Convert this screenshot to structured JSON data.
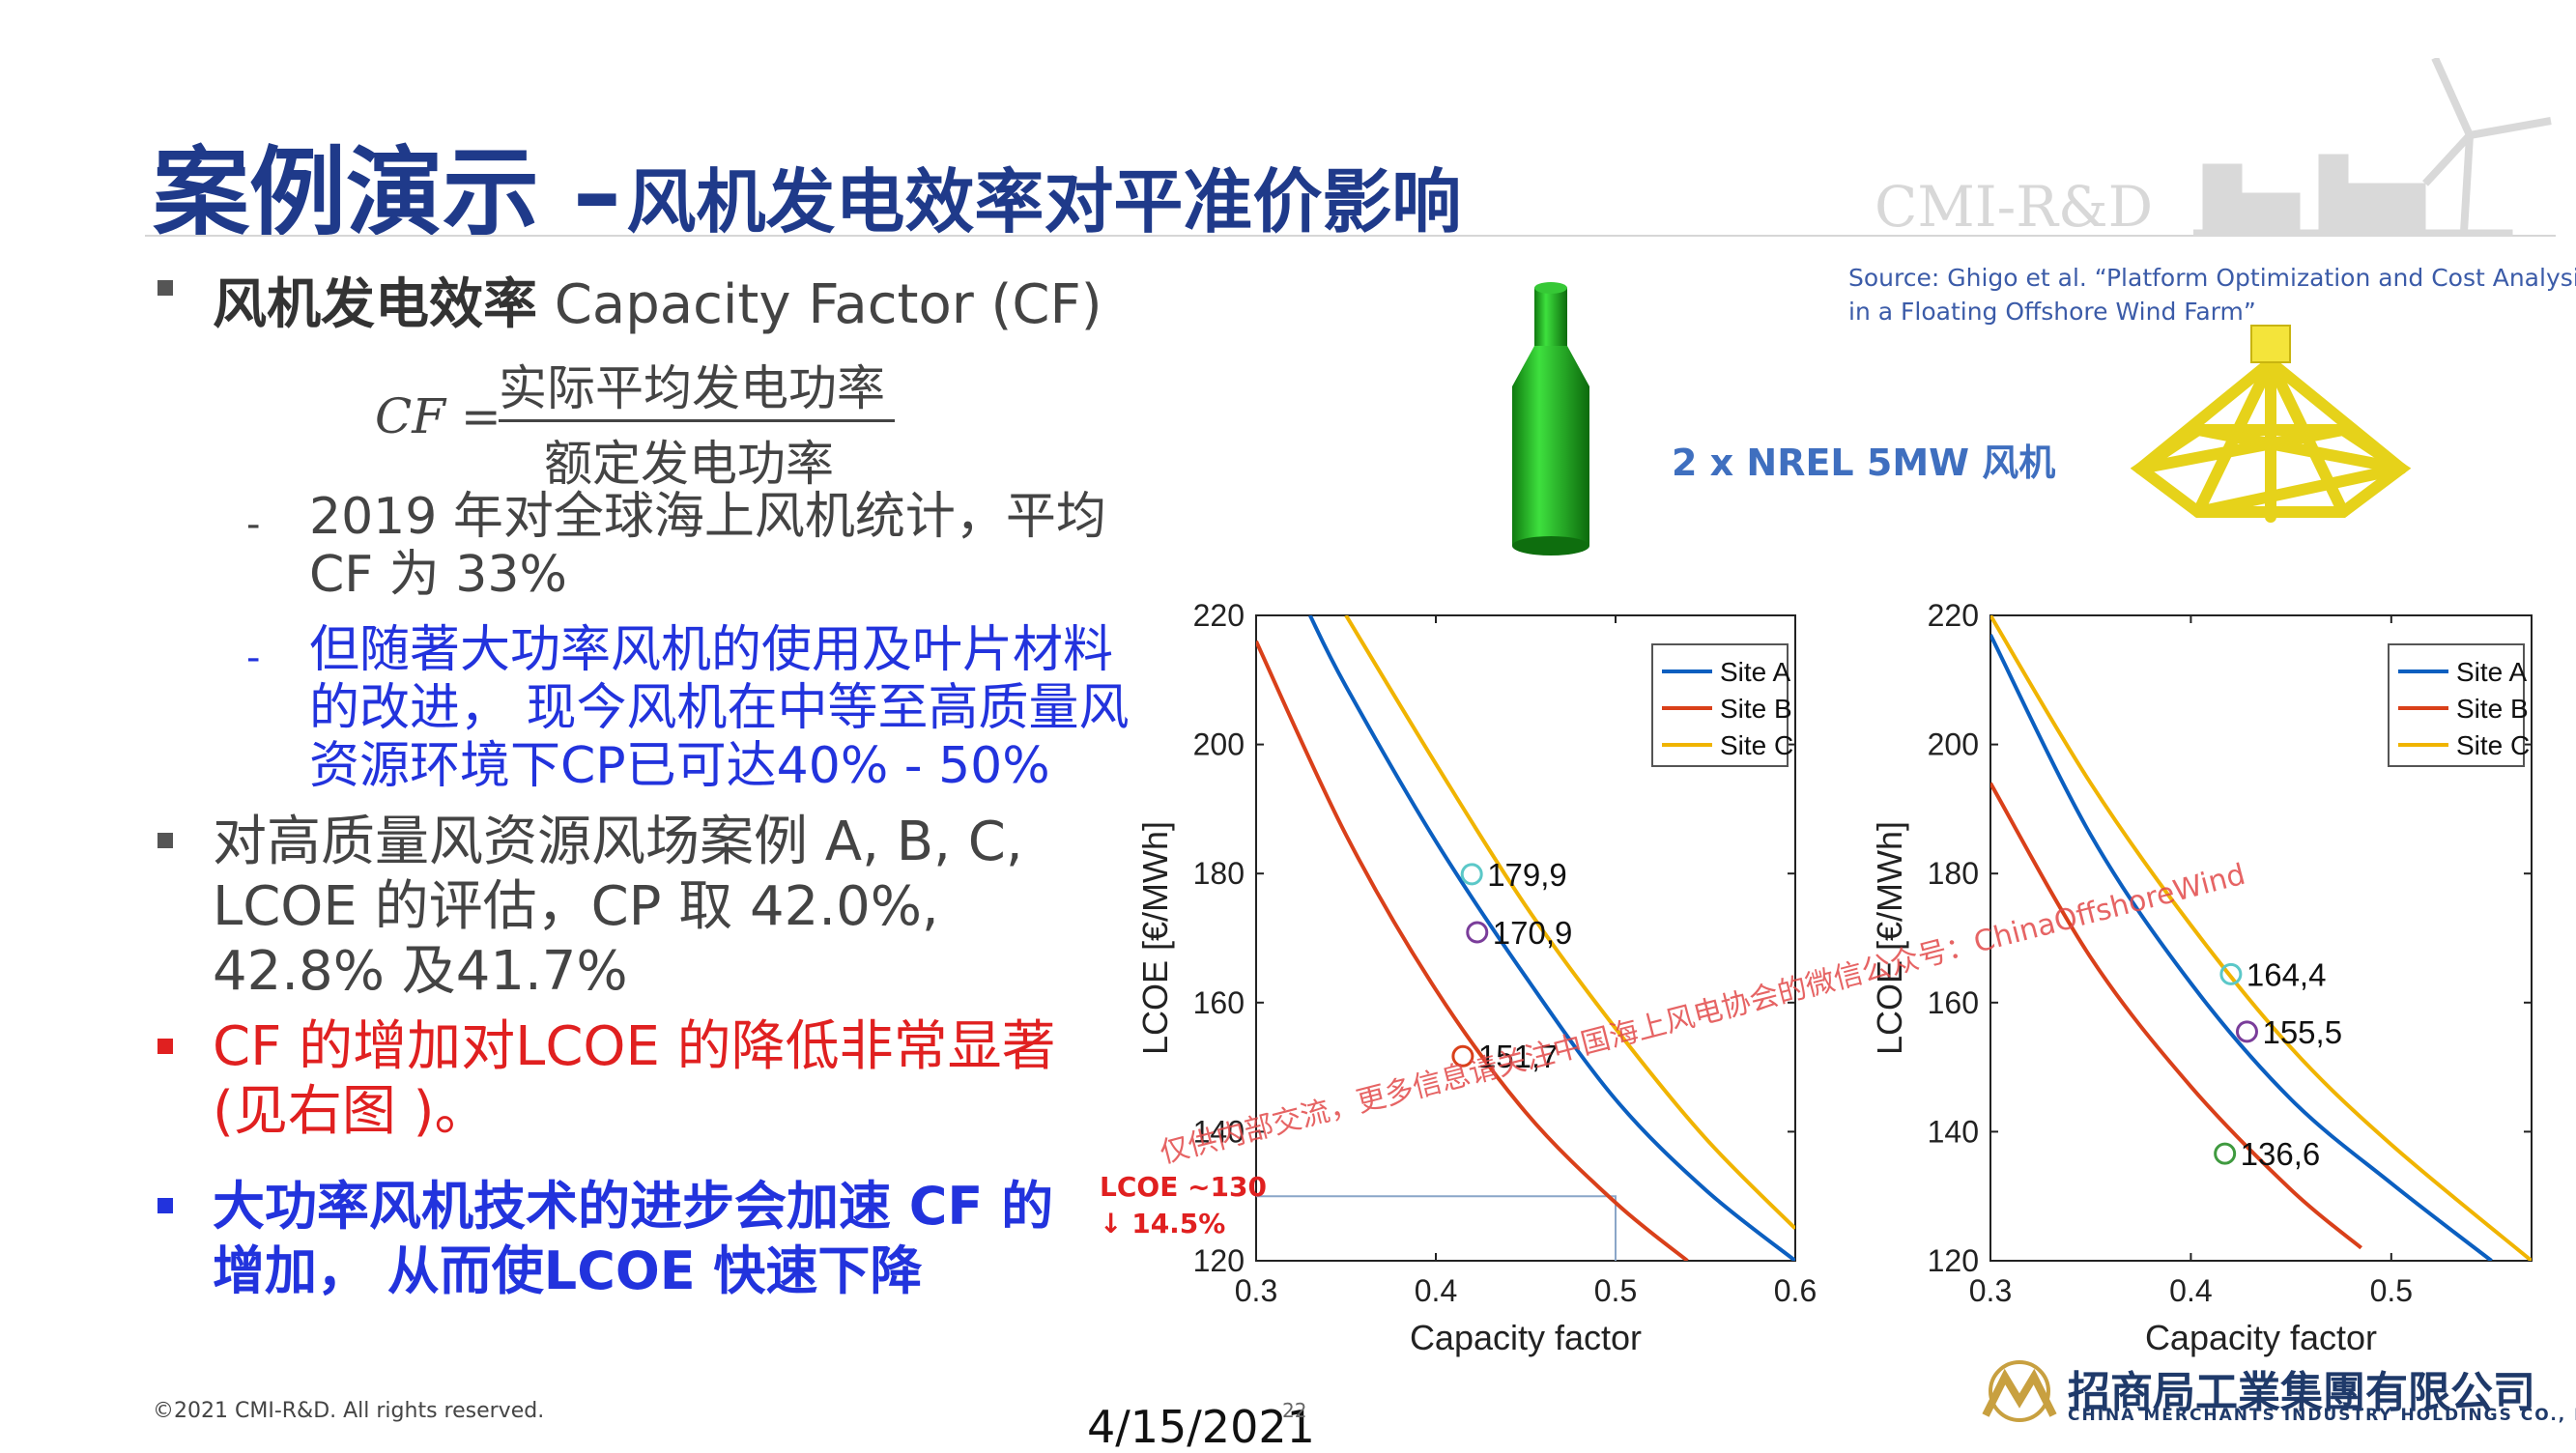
{
  "title": {
    "main": "案例演示 –",
    "sub": "风机发电效率对平准价影响"
  },
  "bullets": {
    "b1_bold": "风机发电效率",
    "b1_rest": " Capacity Factor (CF)",
    "formula": {
      "lhs": "CF =",
      "numerator": "实际平均发电功率",
      "denominator": "额定发电功率"
    },
    "sub1": [
      "2019 年对全球海上风机统计，平均",
      "CF 为 33%"
    ],
    "sub2": [
      "但随著大功率风机的使用及叶片材料",
      "的改进， 现今风机在中等至高质量风",
      "资源环境下CP已可达40% - 50%"
    ],
    "b2": [
      "对高质量风资源风场案例 A, B, C,",
      "LCOE 的评估，CP 取 42.0%,",
      "42.8% 及41.7%"
    ],
    "b3": [
      "CF 的增加对LCOE 的降低非常显著",
      "(见右图 )。"
    ],
    "b4": [
      "大功率风机技术的进步会加速 CF 的",
      "增加， 从而使LCOE 快速下降"
    ]
  },
  "source": [
    "Source: Ghigo et al. “Platform Optimization and Cost Analysis",
    "in a Floating Offshore Wind Farm”"
  ],
  "turbine_label": "2 x NREL 5MW 风机",
  "lcoe_note": [
    "LCOE ~130",
    "↓ 14.5%"
  ],
  "watermark": "仅供内部交流，更多信息请关注中国海上风电协会的微信公众号：ChinaOffshoreWind",
  "logo_cmi": "CMI-R&D",
  "footer": "©2021 CMI-R&D. All rights reserved.",
  "date": "4/15/2021",
  "page_number": "22",
  "company": {
    "cn": "招商局工業集團有限公司",
    "en": "CHINA MERCHANTS INDUSTRY HOLDINGS CO., LTD."
  },
  "colors": {
    "title": "#1f3a8a",
    "site_a": "#0b5fc0",
    "site_b": "#d9401a",
    "site_c": "#f0b400",
    "highlight_blue": "#2233dd",
    "highlight_red": "#e02020"
  },
  "chart_data": [
    {
      "type": "line",
      "xlabel": "Capacity factor",
      "ylabel": "LCOE [€/MWh]",
      "xlim": [
        0.3,
        0.6
      ],
      "ylim": [
        120,
        220
      ],
      "xticks": [
        0.3,
        0.4,
        0.5,
        0.6
      ],
      "yticks": [
        120,
        140,
        160,
        180,
        200,
        220
      ],
      "legend_position": "top-right",
      "series": [
        {
          "name": "Site A",
          "color": "#0b5fc0",
          "x": [
            0.33,
            0.35,
            0.4,
            0.45,
            0.5,
            0.55,
            0.6
          ],
          "y": [
            220,
            209,
            185,
            164,
            145,
            131,
            120
          ]
        },
        {
          "name": "Site B",
          "color": "#d9401a",
          "x": [
            0.3,
            0.35,
            0.4,
            0.45,
            0.5,
            0.54
          ],
          "y": [
            216,
            186,
            162,
            143,
            129,
            120
          ]
        },
        {
          "name": "Site C",
          "color": "#f0b400",
          "x": [
            0.35,
            0.4,
            0.45,
            0.5,
            0.55,
            0.6
          ],
          "y": [
            220,
            197,
            175,
            156,
            139,
            125
          ]
        }
      ],
      "points": [
        {
          "x": 0.42,
          "y": 179.9,
          "label": "179,9",
          "color": "#5bc8c8"
        },
        {
          "x": 0.423,
          "y": 170.9,
          "label": "170,9",
          "color": "#7a3d9a"
        },
        {
          "x": 0.415,
          "y": 151.7,
          "label": "151,7",
          "color": "#d9401a"
        }
      ],
      "reference": {
        "x": 0.5,
        "y": 130
      }
    },
    {
      "type": "line",
      "xlabel": "Capacity factor",
      "ylabel": "LCOE [€/MWh]",
      "xlim": [
        0.3,
        0.57
      ],
      "ylim": [
        120,
        220
      ],
      "xticks": [
        0.3,
        0.4,
        0.5
      ],
      "yticks": [
        120,
        140,
        160,
        180,
        200,
        220
      ],
      "legend_position": "top-right",
      "series": [
        {
          "name": "Site A",
          "color": "#0b5fc0",
          "x": [
            0.3,
            0.35,
            0.4,
            0.45,
            0.5,
            0.55
          ],
          "y": [
            217,
            186,
            163,
            145,
            132,
            120
          ]
        },
        {
          "name": "Site B",
          "color": "#d9401a",
          "x": [
            0.3,
            0.35,
            0.4,
            0.45,
            0.485
          ],
          "y": [
            194,
            167,
            147,
            131,
            122
          ]
        },
        {
          "name": "Site C",
          "color": "#f0b400",
          "x": [
            0.3,
            0.35,
            0.4,
            0.45,
            0.5,
            0.57
          ],
          "y": [
            220,
            194,
            172,
            153,
            138,
            120
          ]
        }
      ],
      "points": [
        {
          "x": 0.42,
          "y": 164.4,
          "label": "164,4",
          "color": "#5bc8c8"
        },
        {
          "x": 0.428,
          "y": 155.5,
          "label": "155,5",
          "color": "#7a3d9a"
        },
        {
          "x": 0.417,
          "y": 136.6,
          "label": "136,6",
          "color": "#3f9a3f"
        }
      ]
    }
  ]
}
